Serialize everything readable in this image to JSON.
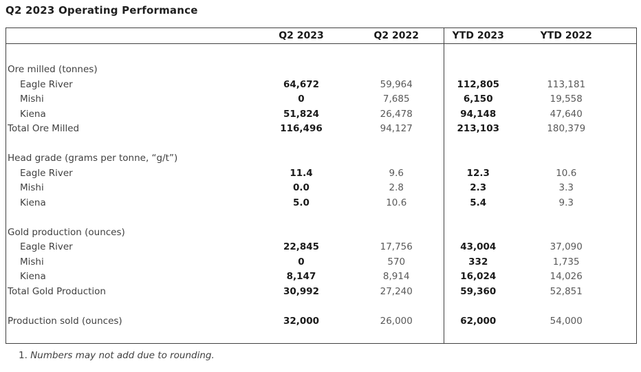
{
  "title": "Q2 2023 Operating Performance",
  "colors": {
    "text_primary": "#1a1a1a",
    "text_muted": "#595959",
    "text_label": "#404040",
    "border": "#404040"
  },
  "table": {
    "columns": [
      "",
      "Q2 2023",
      "Q2 2022",
      "YTD 2023",
      "YTD 2022"
    ],
    "rows": [
      {
        "type": "spacer_lg"
      },
      {
        "type": "section",
        "label": "Ore milled (tonnes)"
      },
      {
        "type": "data",
        "label": "Eagle River",
        "values": [
          "64,672",
          "59,964",
          "112,805",
          "113,181"
        ]
      },
      {
        "type": "data",
        "label": "Mishi",
        "values": [
          "0",
          "7,685",
          "6,150",
          "19,558"
        ]
      },
      {
        "type": "data",
        "label": "Kiena",
        "values": [
          "51,824",
          "26,478",
          "94,148",
          "47,640"
        ]
      },
      {
        "type": "total",
        "label": "Total Ore Milled",
        "values": [
          "116,496",
          "94,127",
          "213,103",
          "180,379"
        ]
      },
      {
        "type": "spacer"
      },
      {
        "type": "section",
        "label": "Head grade (grams per tonne, “g/t”)"
      },
      {
        "type": "data",
        "label": "Eagle River",
        "values": [
          "11.4",
          "9.6",
          "12.3",
          "10.6"
        ]
      },
      {
        "type": "data",
        "label": "Mishi",
        "values": [
          "0.0",
          "2.8",
          "2.3",
          "3.3"
        ]
      },
      {
        "type": "data",
        "label": "Kiena",
        "values": [
          "5.0",
          "10.6",
          "5.4",
          "9.3"
        ]
      },
      {
        "type": "spacer"
      },
      {
        "type": "section",
        "label": "Gold production (ounces)"
      },
      {
        "type": "data",
        "label": "Eagle River",
        "values": [
          "22,845",
          "17,756",
          "43,004",
          "37,090"
        ]
      },
      {
        "type": "data",
        "label": "Mishi",
        "values": [
          "0",
          "570",
          "332",
          "1,735"
        ]
      },
      {
        "type": "data",
        "label": "Kiena",
        "values": [
          "8,147",
          "8,914",
          "16,024",
          "14,026"
        ]
      },
      {
        "type": "total",
        "label": "Total Gold Production",
        "values": [
          "30,992",
          "27,240",
          "59,360",
          "52,851"
        ]
      },
      {
        "type": "spacer"
      },
      {
        "type": "total",
        "label": "Production sold (ounces)",
        "values": [
          "32,000",
          "26,000",
          "62,000",
          "54,000"
        ]
      },
      {
        "type": "spacer"
      }
    ]
  },
  "footnote": {
    "marker": "1.",
    "text": "Numbers may not add due to rounding."
  }
}
